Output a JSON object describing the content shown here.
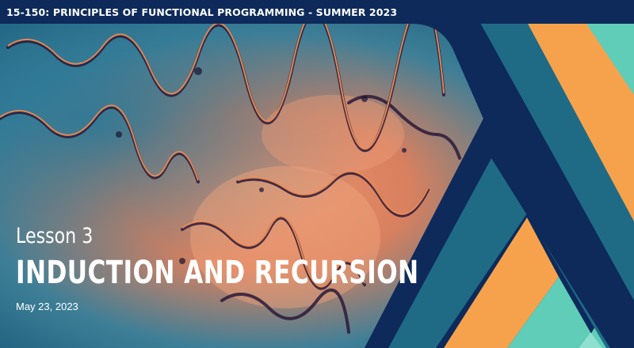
{
  "header": {
    "course_title": "15-150: PRINCIPLES OF FUNCTIONAL PROGRAMMING - SUMMER 2023"
  },
  "lesson": {
    "number_label": "Lesson 3",
    "title": "INDUCTION AND RECURSION",
    "date": "May 23, 2023"
  },
  "background": {
    "image": "fractal-pattern",
    "logo": "lambda-stripes-logo"
  },
  "colors": {
    "navy": "#0d2a5a",
    "teal": "#1f6b86",
    "orange": "#f6a24c",
    "mint": "#5fcdb8",
    "text": "#ffffff"
  }
}
